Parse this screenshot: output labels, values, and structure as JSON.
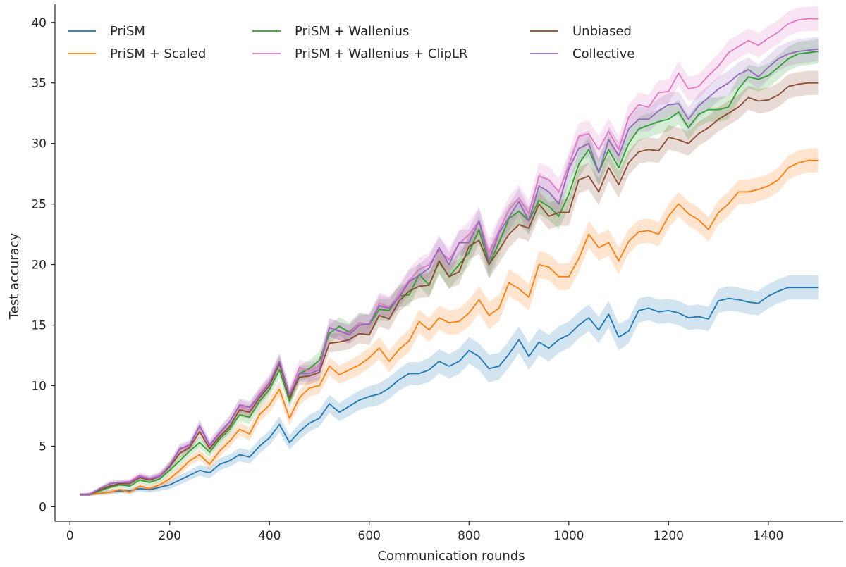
{
  "chart_data": {
    "type": "line",
    "title": "",
    "xlabel": "Communication rounds",
    "ylabel": "Test accuracy",
    "xlim": [
      -30,
      1550
    ],
    "ylim": [
      -1.2,
      41.5
    ],
    "xticks": [
      0,
      200,
      400,
      600,
      800,
      1000,
      1200,
      1400
    ],
    "yticks": [
      0,
      5,
      10,
      15,
      20,
      25,
      30,
      35,
      40
    ],
    "grid": false,
    "legend_position": "top-left",
    "legend_columns": 3,
    "x": [
      20,
      40,
      60,
      80,
      100,
      120,
      140,
      160,
      180,
      200,
      220,
      240,
      260,
      280,
      300,
      320,
      340,
      360,
      380,
      400,
      420,
      440,
      460,
      480,
      500,
      520,
      540,
      560,
      580,
      600,
      620,
      640,
      660,
      680,
      700,
      720,
      740,
      760,
      780,
      800,
      820,
      840,
      860,
      880,
      900,
      920,
      940,
      960,
      980,
      1000,
      1020,
      1040,
      1060,
      1080,
      1100,
      1120,
      1140,
      1160,
      1180,
      1200,
      1220,
      1240,
      1260,
      1280,
      1300,
      1320,
      1340,
      1360,
      1380,
      1400,
      1420,
      1440,
      1460,
      1480,
      1500
    ],
    "series": [
      {
        "name": "PriSM",
        "color": "#1f77b4",
        "values": [
          1.0,
          1.0,
          1.1,
          1.2,
          1.3,
          1.3,
          1.5,
          1.4,
          1.6,
          1.8,
          2.2,
          2.6,
          3.0,
          2.8,
          3.5,
          3.8,
          4.3,
          4.1,
          5.0,
          5.7,
          6.8,
          5.3,
          6.2,
          6.9,
          7.3,
          8.5,
          7.8,
          8.3,
          8.8,
          9.1,
          9.3,
          9.8,
          10.5,
          11.0,
          11.0,
          11.3,
          12.0,
          11.6,
          12.0,
          12.9,
          12.4,
          11.4,
          11.6,
          12.6,
          13.8,
          12.4,
          13.6,
          13.1,
          13.8,
          14.2,
          15.0,
          15.6,
          14.6,
          15.9,
          14.0,
          14.5,
          16.2,
          16.4,
          16.1,
          16.2,
          16.0,
          15.6,
          15.7,
          15.5,
          17.0,
          17.2,
          17.1,
          16.9,
          16.8,
          17.4,
          17.8,
          18.1,
          18.1,
          18.1,
          18.1
        ],
        "band": [
          0.1,
          0.1,
          0.15,
          0.2,
          0.2,
          0.2,
          0.25,
          0.25,
          0.3,
          0.35,
          0.4,
          0.4,
          0.45,
          0.45,
          0.5,
          0.5,
          0.55,
          0.55,
          0.6,
          0.6,
          0.65,
          0.6,
          0.65,
          0.7,
          0.7,
          0.75,
          0.75,
          0.8,
          0.8,
          0.85,
          0.9,
          0.9,
          0.9,
          0.95,
          0.95,
          1.0,
          1.0,
          1.0,
          1.05,
          1.1,
          1.1,
          1.15,
          1.1,
          1.1,
          1.1,
          1.1,
          1.1,
          1.1,
          1.1,
          1.1,
          1.1,
          1.1,
          1.1,
          1.1,
          1.1,
          1.0,
          1.0,
          1.0,
          1.0,
          1.0,
          1.0,
          1.0,
          1.0,
          1.0,
          1.0,
          1.0,
          1.0,
          1.0,
          1.0,
          1.0,
          1.0,
          1.0,
          1.0,
          1.0,
          1.0
        ]
      },
      {
        "name": "PriSM + Scaled",
        "color": "#ff7f0e",
        "values": [
          1.0,
          1.0,
          1.1,
          1.2,
          1.4,
          1.2,
          1.7,
          1.5,
          1.8,
          2.3,
          3.0,
          3.8,
          4.3,
          3.5,
          4.6,
          5.4,
          6.4,
          6.0,
          7.6,
          8.4,
          9.7,
          7.3,
          9.0,
          9.8,
          10.0,
          11.6,
          10.9,
          11.3,
          11.7,
          12.3,
          13.1,
          12.0,
          13.0,
          13.7,
          15.3,
          14.6,
          15.6,
          15.2,
          15.3,
          16.0,
          17.1,
          15.8,
          16.4,
          18.5,
          18.0,
          17.3,
          20.0,
          19.8,
          19.0,
          19.0,
          20.5,
          22.5,
          21.4,
          21.8,
          20.3,
          21.9,
          22.7,
          22.8,
          22.5,
          24.0,
          25.0,
          24.2,
          23.7,
          22.9,
          24.3,
          25.0,
          26.0,
          26.0,
          26.2,
          26.5,
          27.0,
          28.0,
          28.4,
          28.6,
          28.6
        ],
        "band": [
          0.1,
          0.1,
          0.15,
          0.2,
          0.2,
          0.2,
          0.25,
          0.25,
          0.3,
          0.35,
          0.4,
          0.4,
          0.45,
          0.45,
          0.5,
          0.5,
          0.55,
          0.55,
          0.6,
          0.6,
          0.65,
          0.6,
          0.65,
          0.7,
          0.7,
          0.75,
          0.75,
          0.8,
          0.8,
          0.85,
          0.9,
          0.9,
          0.9,
          0.95,
          0.95,
          1.0,
          1.0,
          1.0,
          1.05,
          1.1,
          1.1,
          1.15,
          1.1,
          1.1,
          1.1,
          1.1,
          1.1,
          1.1,
          1.1,
          1.1,
          1.1,
          1.1,
          1.1,
          1.1,
          1.1,
          1.0,
          1.0,
          1.0,
          1.0,
          1.0,
          1.0,
          1.0,
          1.0,
          1.0,
          1.0,
          1.0,
          1.0,
          1.0,
          1.0,
          1.0,
          1.0,
          1.0,
          1.0,
          1.0,
          1.0
        ]
      },
      {
        "name": "PriSM + Wallenius",
        "color": "#2ca02c",
        "values": [
          1.0,
          1.0,
          1.3,
          1.6,
          1.8,
          1.7,
          2.2,
          2.0,
          2.3,
          3.0,
          3.8,
          4.6,
          5.3,
          4.5,
          5.6,
          6.4,
          7.6,
          7.4,
          8.7,
          9.7,
          11.3,
          8.7,
          11.0,
          11.4,
          12.1,
          14.3,
          14.9,
          14.4,
          15.2,
          15.0,
          16.3,
          16.2,
          17.4,
          17.5,
          19.2,
          18.3,
          20.2,
          19.0,
          20.0,
          21.0,
          22.9,
          20.0,
          21.8,
          23.8,
          24.4,
          23.6,
          25.3,
          24.8,
          24.0,
          25.8,
          28.3,
          29.5,
          27.6,
          29.5,
          28.0,
          30.0,
          31.2,
          31.5,
          31.8,
          32.0,
          32.6,
          31.3,
          32.4,
          32.8,
          32.8,
          33.0,
          34.5,
          35.5,
          35.3,
          35.6,
          36.3,
          37.0,
          37.4,
          37.5,
          37.6
        ],
        "band": [
          0.1,
          0.1,
          0.15,
          0.2,
          0.2,
          0.2,
          0.25,
          0.25,
          0.3,
          0.35,
          0.4,
          0.4,
          0.45,
          0.45,
          0.5,
          0.5,
          0.55,
          0.55,
          0.6,
          0.6,
          0.65,
          0.6,
          0.65,
          0.7,
          0.7,
          0.75,
          0.75,
          0.8,
          0.8,
          0.85,
          0.9,
          0.9,
          0.9,
          0.95,
          0.95,
          1.0,
          1.0,
          1.0,
          1.05,
          1.1,
          1.1,
          1.15,
          1.1,
          1.1,
          1.1,
          1.1,
          1.1,
          1.1,
          1.1,
          1.1,
          1.1,
          1.1,
          1.1,
          1.1,
          1.1,
          1.0,
          1.0,
          1.0,
          1.0,
          1.0,
          1.0,
          1.0,
          1.0,
          1.0,
          1.0,
          1.0,
          1.0,
          1.0,
          1.0,
          1.0,
          1.0,
          1.0,
          1.0,
          1.0,
          1.0
        ]
      },
      {
        "name": "PriSM + Wallenius + ClipLR",
        "color": "#e377c2",
        "values": [
          1.0,
          1.1,
          1.5,
          1.9,
          2.0,
          2.1,
          2.6,
          2.3,
          2.6,
          3.4,
          4.7,
          5.0,
          6.6,
          5.0,
          6.0,
          7.0,
          8.3,
          8.0,
          9.3,
          10.3,
          12.0,
          9.3,
          11.5,
          11.2,
          11.6,
          14.8,
          14.5,
          14.3,
          15.2,
          15.0,
          16.8,
          16.5,
          17.5,
          18.7,
          19.6,
          20.0,
          21.2,
          20.4,
          21.7,
          22.5,
          23.6,
          21.0,
          22.8,
          24.5,
          25.5,
          24.2,
          27.3,
          27.0,
          26.0,
          28.2,
          30.6,
          30.8,
          29.5,
          31.0,
          29.5,
          32.2,
          33.2,
          33.0,
          34.2,
          34.3,
          35.8,
          34.5,
          34.7,
          35.6,
          36.4,
          37.5,
          38.0,
          38.5,
          38.1,
          38.7,
          39.2,
          39.9,
          40.2,
          40.3,
          40.3
        ],
        "band": [
          0.1,
          0.1,
          0.15,
          0.2,
          0.2,
          0.2,
          0.25,
          0.25,
          0.3,
          0.35,
          0.4,
          0.4,
          0.45,
          0.45,
          0.5,
          0.5,
          0.55,
          0.55,
          0.6,
          0.6,
          0.65,
          0.6,
          0.65,
          0.7,
          0.7,
          0.75,
          0.75,
          0.8,
          0.8,
          0.85,
          0.9,
          0.9,
          0.9,
          0.95,
          0.95,
          1.0,
          1.0,
          1.0,
          1.05,
          1.1,
          1.1,
          1.15,
          1.1,
          1.1,
          1.1,
          1.1,
          1.1,
          1.1,
          1.1,
          1.1,
          1.1,
          1.1,
          1.1,
          1.1,
          1.1,
          1.0,
          1.0,
          1.0,
          1.0,
          1.0,
          1.0,
          1.0,
          1.0,
          1.0,
          1.0,
          1.0,
          1.0,
          1.0,
          1.0,
          1.0,
          1.0,
          1.0,
          1.0,
          1.0,
          1.0
        ]
      },
      {
        "name": "Unbiased",
        "color": "#8c4a2f",
        "values": [
          1.0,
          1.0,
          1.4,
          1.7,
          1.9,
          1.9,
          2.4,
          2.2,
          2.5,
          3.3,
          4.4,
          4.9,
          6.2,
          4.8,
          5.8,
          6.6,
          8.0,
          7.8,
          9.0,
          10.0,
          11.8,
          9.0,
          10.7,
          10.8,
          11.1,
          13.5,
          13.6,
          13.8,
          14.3,
          14.2,
          15.8,
          15.5,
          17.0,
          17.8,
          18.2,
          18.3,
          20.3,
          19.0,
          19.4,
          21.5,
          22.0,
          20.0,
          21.2,
          22.5,
          23.3,
          23.0,
          25.0,
          24.0,
          24.3,
          24.3,
          27.0,
          27.3,
          26.0,
          28.0,
          26.6,
          28.4,
          29.3,
          29.5,
          29.4,
          30.5,
          30.3,
          30.0,
          30.8,
          31.3,
          32.0,
          32.5,
          33.0,
          33.8,
          33.5,
          33.6,
          34.0,
          34.7,
          34.9,
          35.0,
          35.0
        ],
        "band": [
          0.1,
          0.1,
          0.15,
          0.2,
          0.2,
          0.2,
          0.25,
          0.25,
          0.3,
          0.35,
          0.4,
          0.4,
          0.45,
          0.45,
          0.5,
          0.5,
          0.55,
          0.55,
          0.6,
          0.6,
          0.65,
          0.6,
          0.65,
          0.7,
          0.7,
          0.75,
          0.75,
          0.8,
          0.8,
          0.85,
          0.9,
          0.9,
          0.9,
          0.95,
          0.95,
          1.0,
          1.0,
          1.0,
          1.05,
          1.1,
          1.1,
          1.15,
          1.1,
          1.1,
          1.1,
          1.1,
          1.1,
          1.1,
          1.1,
          1.1,
          1.1,
          1.1,
          1.1,
          1.1,
          1.1,
          1.0,
          1.0,
          1.0,
          1.0,
          1.0,
          1.0,
          1.0,
          1.0,
          1.0,
          1.0,
          1.0,
          1.0,
          1.0,
          1.0,
          1.0,
          1.0,
          1.0,
          1.0,
          1.0,
          1.0
        ]
      },
      {
        "name": "Collective",
        "color": "#9467bd",
        "values": [
          1.0,
          1.0,
          1.5,
          1.9,
          2.0,
          2.0,
          2.5,
          2.3,
          2.5,
          3.4,
          4.8,
          5.1,
          6.7,
          5.1,
          6.1,
          7.0,
          8.4,
          8.2,
          9.2,
          10.2,
          12.0,
          9.2,
          11.0,
          11.0,
          11.3,
          14.8,
          14.5,
          14.2,
          15.0,
          15.1,
          16.6,
          16.4,
          17.3,
          18.6,
          19.1,
          19.7,
          21.4,
          20.0,
          21.8,
          21.8,
          23.6,
          20.3,
          22.6,
          23.9,
          25.2,
          23.6,
          26.5,
          26.0,
          25.0,
          27.9,
          29.6,
          30.0,
          27.6,
          30.3,
          29.0,
          31.2,
          32.0,
          32.0,
          32.7,
          33.2,
          33.3,
          32.0,
          33.1,
          33.8,
          34.5,
          35.0,
          35.7,
          36.1,
          35.5,
          36.3,
          37.0,
          37.4,
          37.6,
          37.7,
          37.8
        ],
        "band": [
          0.1,
          0.1,
          0.15,
          0.2,
          0.2,
          0.2,
          0.25,
          0.25,
          0.3,
          0.35,
          0.4,
          0.4,
          0.45,
          0.45,
          0.5,
          0.5,
          0.55,
          0.55,
          0.6,
          0.6,
          0.65,
          0.6,
          0.65,
          0.7,
          0.7,
          0.75,
          0.75,
          0.8,
          0.8,
          0.85,
          0.9,
          0.9,
          0.9,
          0.95,
          0.95,
          1.0,
          1.0,
          1.0,
          1.05,
          1.1,
          1.1,
          1.15,
          1.1,
          1.1,
          1.1,
          1.1,
          1.1,
          1.1,
          1.1,
          1.1,
          1.1,
          1.1,
          1.1,
          1.1,
          1.1,
          1.0,
          1.0,
          1.0,
          1.0,
          1.0,
          1.0,
          1.0,
          1.0,
          1.0,
          1.0,
          1.0,
          1.0,
          1.0,
          1.0,
          1.0,
          1.0,
          1.0,
          1.0,
          1.0,
          1.0
        ]
      }
    ]
  }
}
